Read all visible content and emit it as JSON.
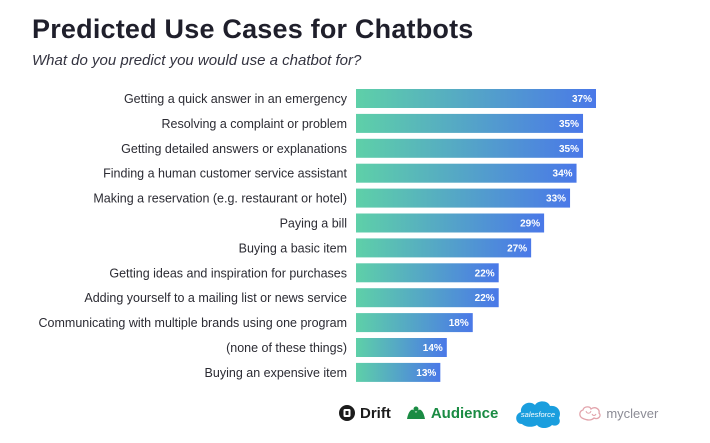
{
  "title": "Predicted Use Cases for Chatbots",
  "subtitle": "What do you predict you would use a chatbot for?",
  "chart_data": {
    "type": "bar",
    "orientation": "horizontal",
    "categories": [
      "Getting a quick answer in an emergency",
      "Resolving a complaint or problem",
      "Getting detailed answers or explanations",
      "Finding a human customer service assistant",
      "Making a reservation (e.g. restaurant or hotel)",
      "Paying a bill",
      "Buying a basic item",
      "Getting ideas and inspiration for purchases",
      "Adding yourself to a mailing list or news service",
      "Communicating with multiple brands using one program",
      "(none of these things)",
      "Buying an expensive item"
    ],
    "values": [
      37,
      35,
      35,
      34,
      33,
      29,
      27,
      22,
      22,
      18,
      14,
      13
    ],
    "value_labels": [
      "37%",
      "35%",
      "35%",
      "34%",
      "33%",
      "29%",
      "27%",
      "22%",
      "22%",
      "18%",
      "14%",
      "13%"
    ],
    "value_unit": "%",
    "gradient_colors": [
      "#5ed0a8",
      "#4a78e8"
    ],
    "grid": false,
    "legend": "none"
  },
  "logos": {
    "drift": "Drift",
    "audience": "Audience",
    "salesforce": "salesforce",
    "myclever": "myclever"
  }
}
